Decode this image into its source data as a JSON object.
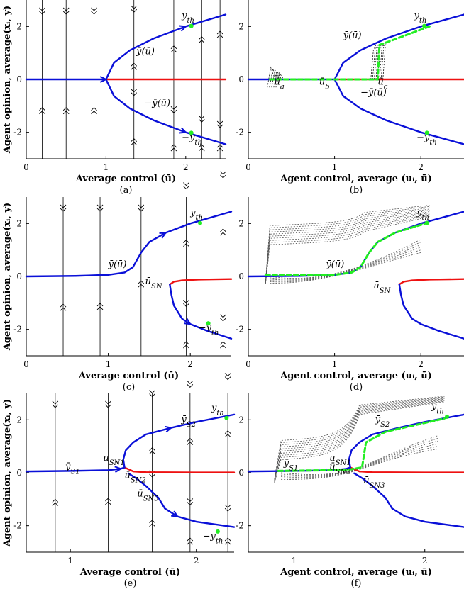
{
  "chart_data": [
    {
      "panel": "a",
      "type": "line",
      "caption": "(a)",
      "xlabel": "Average control (ū)",
      "ylabel": "Agent opinion, average(xᵢ, y)",
      "xlim": [
        0,
        2.5
      ],
      "ylim": [
        -3,
        3
      ],
      "xticks": [
        "0",
        "1",
        "2"
      ],
      "yticks": [
        "-2",
        "0",
        "2"
      ],
      "colors": {
        "stable": "#0a10d8",
        "unstable": "#ee1111",
        "threshold": "#22ee22",
        "flow": "#000000"
      },
      "flow_lines_x": [
        0.2,
        0.5,
        0.85,
        1.35,
        1.85,
        2.2,
        2.43
      ],
      "series": [
        {
          "role": "stable",
          "color": "blue",
          "x": [
            0,
            1
          ],
          "y": [
            0,
            0
          ]
        },
        {
          "role": "unstable",
          "color": "red",
          "x": [
            1,
            2.5
          ],
          "y": [
            0,
            0
          ]
        },
        {
          "role": "stable",
          "color": "blue",
          "x": [
            1,
            1.1,
            1.3,
            1.6,
            2.0,
            2.5
          ],
          "y": [
            0,
            0.63,
            1.1,
            1.55,
            2.0,
            2.45
          ]
        },
        {
          "role": "stable",
          "color": "blue",
          "x": [
            1,
            1.1,
            1.3,
            1.6,
            2.0,
            2.5
          ],
          "y": [
            0,
            -0.63,
            -1.1,
            -1.55,
            -2.0,
            -2.45
          ]
        }
      ],
      "annotations": [
        {
          "text": "y_th",
          "x": 1.95,
          "y": 2.3
        },
        {
          "text": "ȳ(ū)",
          "x": 1.38,
          "y": 0.95
        },
        {
          "text": "−ȳ(ū)",
          "x": 1.48,
          "y": -1.0
        },
        {
          "text": "−y_th",
          "x": 1.95,
          "y": -2.3
        }
      ]
    },
    {
      "panel": "b",
      "type": "line",
      "caption": "(b)",
      "xlabel": "Agent control, average (uᵢ, ū)",
      "xlim": [
        0,
        2.5
      ],
      "ylim": [
        -3,
        3
      ],
      "xticks": [
        "0",
        "1",
        "2"
      ],
      "yticks": [
        "-2",
        "0",
        "2"
      ],
      "series": [
        {
          "role": "stable",
          "color": "blue",
          "x": [
            0,
            1
          ],
          "y": [
            0,
            0
          ]
        },
        {
          "role": "unstable",
          "color": "red",
          "x": [
            1,
            2.5
          ],
          "y": [
            0,
            0
          ]
        },
        {
          "role": "stable",
          "color": "blue",
          "x": [
            1,
            1.1,
            1.3,
            1.6,
            2.0,
            2.5
          ],
          "y": [
            0,
            0.63,
            1.1,
            1.55,
            2.0,
            2.45
          ]
        },
        {
          "role": "stable",
          "color": "blue",
          "x": [
            1,
            1.1,
            1.3,
            1.6,
            2.0,
            2.5
          ],
          "y": [
            0,
            -0.63,
            -1.1,
            -1.55,
            -2.0,
            -2.45
          ]
        },
        {
          "role": "trajectory",
          "color": "green",
          "x": [
            0.25,
            1.5,
            1.52,
            2.1
          ],
          "y": [
            0,
            0,
            1.3,
            2.0
          ]
        }
      ],
      "annotations": [
        {
          "text": "y_th",
          "x": 1.92,
          "y": 2.3
        },
        {
          "text": "ȳ(ū)",
          "x": 1.1,
          "y": 1.55
        },
        {
          "text": "ū_a",
          "x": 0.3,
          "y": -0.2
        },
        {
          "text": "ū_b",
          "x": 0.82,
          "y": -0.2
        },
        {
          "text": "ū_c",
          "x": 1.5,
          "y": -0.2
        },
        {
          "text": "−ȳ(ū)",
          "x": 1.3,
          "y": -0.6
        },
        {
          "text": "−y_th",
          "x": 1.95,
          "y": -2.3
        }
      ]
    },
    {
      "panel": "c",
      "type": "line",
      "caption": "(c)",
      "xlabel": "Average control (ū)",
      "ylabel": "Agent opinion, average(xᵢ, y)",
      "xlim": [
        0,
        2.5
      ],
      "ylim": [
        -3,
        3
      ],
      "xticks": [
        "0",
        "1",
        "2"
      ],
      "yticks": [
        "-2",
        "0",
        "2"
      ],
      "flow_lines_x": [
        0.45,
        0.9,
        1.4,
        1.95,
        2.4
      ],
      "series": [
        {
          "role": "stable",
          "color": "blue",
          "x": [
            0,
            0.6,
            1.0,
            1.2,
            1.3,
            1.4,
            1.5,
            1.7,
            2.0,
            2.5
          ],
          "y": [
            0,
            0.02,
            0.06,
            0.15,
            0.35,
            0.9,
            1.3,
            1.65,
            2.0,
            2.45
          ]
        },
        {
          "role": "unstable",
          "color": "red",
          "x": [
            1.75,
            1.8,
            1.9,
            2.1,
            2.5
          ],
          "y": [
            -0.3,
            -0.2,
            -0.15,
            -0.12,
            -0.1
          ]
        },
        {
          "role": "stable",
          "color": "blue",
          "x": [
            1.75,
            1.77,
            1.8,
            1.9,
            2.0,
            2.2,
            2.5
          ],
          "y": [
            -0.3,
            -0.7,
            -1.1,
            -1.6,
            -1.8,
            -2.05,
            -2.35
          ]
        }
      ],
      "annotations": [
        {
          "text": "y_th",
          "x": 2.0,
          "y": 2.3
        },
        {
          "text": "ȳ(ū)",
          "x": 1.0,
          "y": 0.35
        },
        {
          "text": "ū_SN",
          "x": 1.45,
          "y": -0.3
        },
        {
          "text": "−y_th",
          "x": 2.1,
          "y": -2.05
        }
      ]
    },
    {
      "panel": "d",
      "type": "line",
      "caption": "(d)",
      "xlabel": "Agent control, average (uᵢ, ū)",
      "xlim": [
        0,
        2.5
      ],
      "ylim": [
        -3,
        3
      ],
      "xticks": [
        "0",
        "1",
        "2"
      ],
      "yticks": [
        "-2",
        "0",
        "2"
      ],
      "series": [
        {
          "role": "stable",
          "color": "blue",
          "x": [
            0,
            0.6,
            1.0,
            1.2,
            1.3,
            1.4,
            1.5,
            1.7,
            2.0,
            2.5
          ],
          "y": [
            0,
            0.02,
            0.06,
            0.15,
            0.35,
            0.9,
            1.3,
            1.65,
            2.0,
            2.45
          ]
        },
        {
          "role": "unstable",
          "color": "red",
          "x": [
            1.75,
            1.8,
            1.9,
            2.1,
            2.5
          ],
          "y": [
            -0.3,
            -0.2,
            -0.15,
            -0.12,
            -0.1
          ]
        },
        {
          "role": "stable",
          "color": "blue",
          "x": [
            1.75,
            1.77,
            1.8,
            1.9,
            2.0,
            2.2,
            2.5
          ],
          "y": [
            -0.3,
            -0.7,
            -1.1,
            -1.6,
            -1.8,
            -2.05,
            -2.35
          ]
        },
        {
          "role": "trajectory",
          "color": "green",
          "x": [
            0.2,
            0.6,
            1.0,
            1.2,
            1.3,
            1.4,
            1.5,
            1.7,
            2.1
          ],
          "y": [
            0.05,
            0.05,
            0.06,
            0.15,
            0.35,
            0.9,
            1.3,
            1.65,
            2.05
          ]
        }
      ],
      "annotations": [
        {
          "text": "y_th",
          "x": 1.95,
          "y": 2.3
        },
        {
          "text": "ȳ(ū)",
          "x": 0.9,
          "y": 0.35
        },
        {
          "text": "ū_SN",
          "x": 1.45,
          "y": -0.45
        }
      ]
    },
    {
      "panel": "e",
      "type": "line",
      "caption": "(e)",
      "xlabel": "Average control (ū)",
      "ylabel": "Agent opinion, average(xᵢ, y)",
      "xlim": [
        0.65,
        2.3
      ],
      "ylim": [
        -3,
        3
      ],
      "xticks": [
        "1",
        "2"
      ],
      "yticks": [
        "-2",
        "0",
        "2"
      ],
      "flow_lines_x": [
        0.88,
        1.3,
        1.65,
        1.95,
        2.25
      ],
      "series": [
        {
          "role": "stable",
          "color": "blue",
          "x": [
            0.65,
            1.0,
            1.3,
            1.4,
            1.43
          ],
          "y": [
            0.05,
            0.07,
            0.1,
            0.15,
            0.2
          ]
        },
        {
          "role": "unstable",
          "color": "red",
          "x": [
            1.43,
            1.5,
            1.6,
            2.0,
            2.3
          ],
          "y": [
            0.2,
            0.05,
            0.02,
            0.01,
            0.01
          ]
        },
        {
          "role": "stable",
          "color": "blue",
          "x": [
            1.43,
            1.42,
            1.44,
            1.5,
            1.6,
            1.8,
            2.0,
            2.3
          ],
          "y": [
            0.2,
            0.5,
            0.85,
            1.15,
            1.45,
            1.7,
            1.92,
            2.2
          ]
        },
        {
          "role": "stable",
          "color": "blue",
          "x": [
            1.46,
            1.52,
            1.6,
            1.7,
            1.75,
            1.85,
            2.0,
            2.3
          ],
          "y": [
            -0.02,
            -0.2,
            -0.5,
            -0.95,
            -1.35,
            -1.65,
            -1.85,
            -2.05
          ]
        }
      ],
      "annotations": [
        {
          "text": "y_th",
          "x": 2.12,
          "y": 2.35
        },
        {
          "text": "ȳ_S2",
          "x": 1.88,
          "y": 1.9
        },
        {
          "text": "ȳ_S1",
          "x": 0.96,
          "y": 0.12
        },
        {
          "text": "ū_SN1",
          "x": 1.26,
          "y": 0.45
        },
        {
          "text": "ū_SN2",
          "x": 1.43,
          "y": -0.2
        },
        {
          "text": "ū_SN3",
          "x": 1.53,
          "y": -0.9
        },
        {
          "text": "−y_th",
          "x": 2.05,
          "y": -2.5
        }
      ]
    },
    {
      "panel": "f",
      "type": "line",
      "caption": "(f)",
      "xlabel": "Agent control, average (uᵢ, ū)",
      "xlim": [
        0.65,
        2.3
      ],
      "ylim": [
        -3,
        3
      ],
      "xticks": [
        "1",
        "2"
      ],
      "yticks": [
        "-2",
        "0",
        "2"
      ],
      "series": [
        {
          "role": "stable",
          "color": "blue",
          "x": [
            0.65,
            1.0,
            1.3,
            1.4,
            1.43
          ],
          "y": [
            0.05,
            0.07,
            0.1,
            0.15,
            0.2
          ]
        },
        {
          "role": "unstable",
          "color": "red",
          "x": [
            1.43,
            1.5,
            1.6,
            2.0,
            2.3
          ],
          "y": [
            0.2,
            0.05,
            0.02,
            0.01,
            0.01
          ]
        },
        {
          "role": "stable",
          "color": "blue",
          "x": [
            1.43,
            1.42,
            1.44,
            1.5,
            1.6,
            1.8,
            2.0,
            2.3
          ],
          "y": [
            0.2,
            0.5,
            0.85,
            1.15,
            1.45,
            1.7,
            1.92,
            2.2
          ]
        },
        {
          "role": "stable",
          "color": "blue",
          "x": [
            1.46,
            1.52,
            1.6,
            1.7,
            1.75,
            1.85,
            2.0,
            2.3
          ],
          "y": [
            -0.02,
            -0.2,
            -0.5,
            -0.95,
            -1.35,
            -1.65,
            -1.85,
            -2.05
          ]
        },
        {
          "role": "trajectory",
          "color": "green",
          "x": [
            0.88,
            1.3,
            1.42,
            1.52,
            1.55,
            1.7,
            2.15
          ],
          "y": [
            0.07,
            0.1,
            0.12,
            0.2,
            1.15,
            1.55,
            2.05
          ]
        }
      ],
      "annotations": [
        {
          "text": "y_th",
          "x": 2.05,
          "y": 2.4
        },
        {
          "text": "ȳ_S2",
          "x": 1.62,
          "y": 1.9
        },
        {
          "text": "ȳ_S1",
          "x": 0.92,
          "y": 0.25
        },
        {
          "text": "ū_SN1",
          "x": 1.27,
          "y": 0.45
        },
        {
          "text": "ū_SN2",
          "x": 1.27,
          "y": 0.12
        },
        {
          "text": "ū_SN3",
          "x": 1.53,
          "y": -0.4
        }
      ]
    }
  ]
}
